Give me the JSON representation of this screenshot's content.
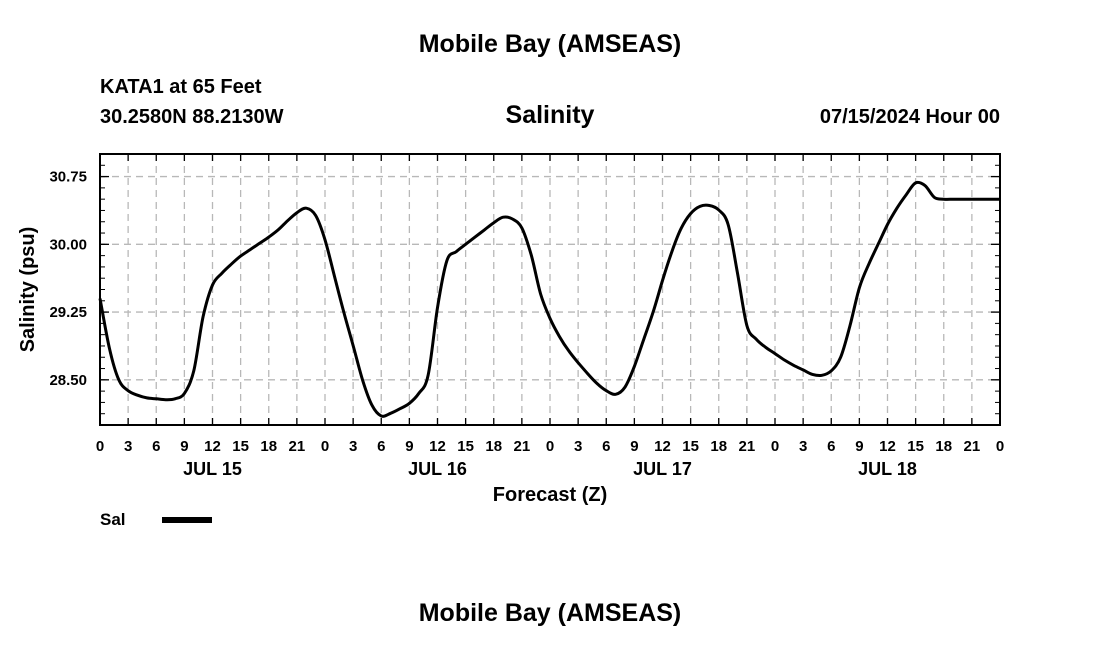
{
  "header": {
    "title": "Mobile Bay (AMSEAS)",
    "station": "KATA1 at 65 Feet",
    "coords": "30.2580N  88.2130W",
    "run_time": "07/15/2024 Hour 00"
  },
  "footer": {
    "title": "Mobile Bay (AMSEAS)"
  },
  "legend": {
    "label": "Sal",
    "color": "#000000"
  },
  "chart_data": {
    "type": "line",
    "title": "Salinity",
    "xlabel": "Forecast (Z)",
    "ylabel": "Salinity (psu)",
    "x_unit": "forecast hour from 07/15/2024 00Z",
    "xlim": [
      0,
      96
    ],
    "ylim": [
      28.0,
      31.0
    ],
    "y_ticks": [
      "28.50",
      "29.25",
      "30.00",
      "30.75"
    ],
    "x_tick_labels": [
      "0",
      "3",
      "6",
      "9",
      "12",
      "15",
      "18",
      "21",
      "0",
      "3",
      "6",
      "9",
      "12",
      "15",
      "18",
      "21",
      "0",
      "3",
      "6",
      "9",
      "12",
      "15",
      "18",
      "21",
      "0",
      "3",
      "6",
      "9",
      "12",
      "15",
      "18",
      "21",
      "0"
    ],
    "day_labels": [
      "JUL 15",
      "JUL 16",
      "JUL 17",
      "JUL 18"
    ],
    "grid": true,
    "legend_position": "bottom-left",
    "series": [
      {
        "name": "Sal",
        "x": [
          0,
          1,
          2,
          3,
          4,
          5,
          6,
          7,
          8,
          9,
          10,
          11,
          12,
          13,
          14,
          15,
          16,
          17,
          18,
          19,
          20,
          21,
          22,
          23,
          24,
          25,
          26,
          27,
          28,
          29,
          30,
          31,
          32,
          33,
          34,
          35,
          36,
          37,
          38,
          39,
          40,
          41,
          42,
          43,
          44,
          45,
          46,
          47,
          48,
          49,
          50,
          51,
          52,
          53,
          54,
          55,
          56,
          57,
          58,
          59,
          60,
          61,
          62,
          63,
          64,
          65,
          66,
          67,
          68,
          69,
          70,
          71,
          72,
          73,
          74,
          75,
          76,
          77,
          78,
          79,
          80,
          81,
          82,
          83,
          84,
          85,
          86,
          87,
          88,
          89,
          90,
          91,
          92,
          93,
          94,
          95,
          96
        ],
        "values": [
          29.4,
          28.85,
          28.5,
          28.38,
          28.33,
          28.3,
          28.29,
          28.28,
          28.29,
          28.35,
          28.6,
          29.2,
          29.55,
          29.68,
          29.78,
          29.87,
          29.94,
          30.01,
          30.08,
          30.16,
          30.26,
          30.35,
          30.4,
          30.32,
          30.05,
          29.65,
          29.25,
          28.88,
          28.5,
          28.22,
          28.1,
          28.13,
          28.18,
          28.24,
          28.35,
          28.55,
          29.3,
          29.82,
          29.92,
          30.0,
          30.08,
          30.16,
          30.24,
          30.3,
          30.28,
          30.18,
          29.88,
          29.45,
          29.18,
          28.98,
          28.82,
          28.69,
          28.57,
          28.46,
          28.38,
          28.34,
          28.42,
          28.65,
          28.95,
          29.25,
          29.6,
          29.92,
          30.18,
          30.34,
          30.42,
          30.43,
          30.38,
          30.22,
          29.68,
          29.1,
          28.95,
          28.86,
          28.79,
          28.72,
          28.66,
          28.61,
          28.56,
          28.55,
          28.6,
          28.75,
          29.1,
          29.52,
          29.78,
          30.0,
          30.22,
          30.4,
          30.55,
          30.68,
          30.65,
          30.52,
          30.5,
          30.5,
          30.5,
          30.5,
          30.5,
          30.5,
          30.5
        ],
        "color": "#000000"
      }
    ]
  }
}
